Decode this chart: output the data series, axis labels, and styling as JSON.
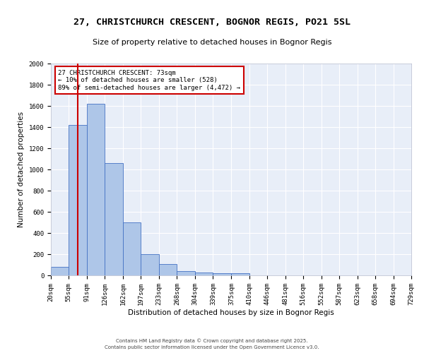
{
  "title": "27, CHRISTCHURCH CRESCENT, BOGNOR REGIS, PO21 5SL",
  "subtitle": "Size of property relative to detached houses in Bognor Regis",
  "xlabel": "Distribution of detached houses by size in Bognor Regis",
  "ylabel": "Number of detached properties",
  "bin_edges": [
    20,
    55,
    91,
    126,
    162,
    197,
    233,
    268,
    304,
    339,
    375,
    410,
    446,
    481,
    516,
    552,
    587,
    623,
    658,
    694,
    729
  ],
  "bar_heights": [
    80,
    1420,
    1620,
    1060,
    500,
    200,
    110,
    40,
    30,
    20,
    20,
    0,
    0,
    0,
    0,
    0,
    0,
    0,
    0,
    0
  ],
  "bar_color": "#aec6e8",
  "bar_edge_color": "#4472c4",
  "property_size": 73,
  "vline_color": "#cc0000",
  "ylim": [
    0,
    2000
  ],
  "yticks": [
    0,
    200,
    400,
    600,
    800,
    1000,
    1200,
    1400,
    1600,
    1800,
    2000
  ],
  "annotation_title": "27 CHRISTCHURCH CRESCENT: 73sqm",
  "annotation_line2": "← 10% of detached houses are smaller (528)",
  "annotation_line3": "89% of semi-detached houses are larger (4,472) →",
  "annotation_box_color": "#cc0000",
  "background_color": "#e8eef8",
  "grid_color": "#ffffff",
  "footer_line1": "Contains HM Land Registry data © Crown copyright and database right 2025.",
  "footer_line2": "Contains public sector information licensed under the Open Government Licence v3.0.",
  "title_fontsize": 9.5,
  "subtitle_fontsize": 8,
  "label_fontsize": 7.5,
  "tick_fontsize": 6.5,
  "annotation_fontsize": 6.5,
  "footer_fontsize": 5.0
}
